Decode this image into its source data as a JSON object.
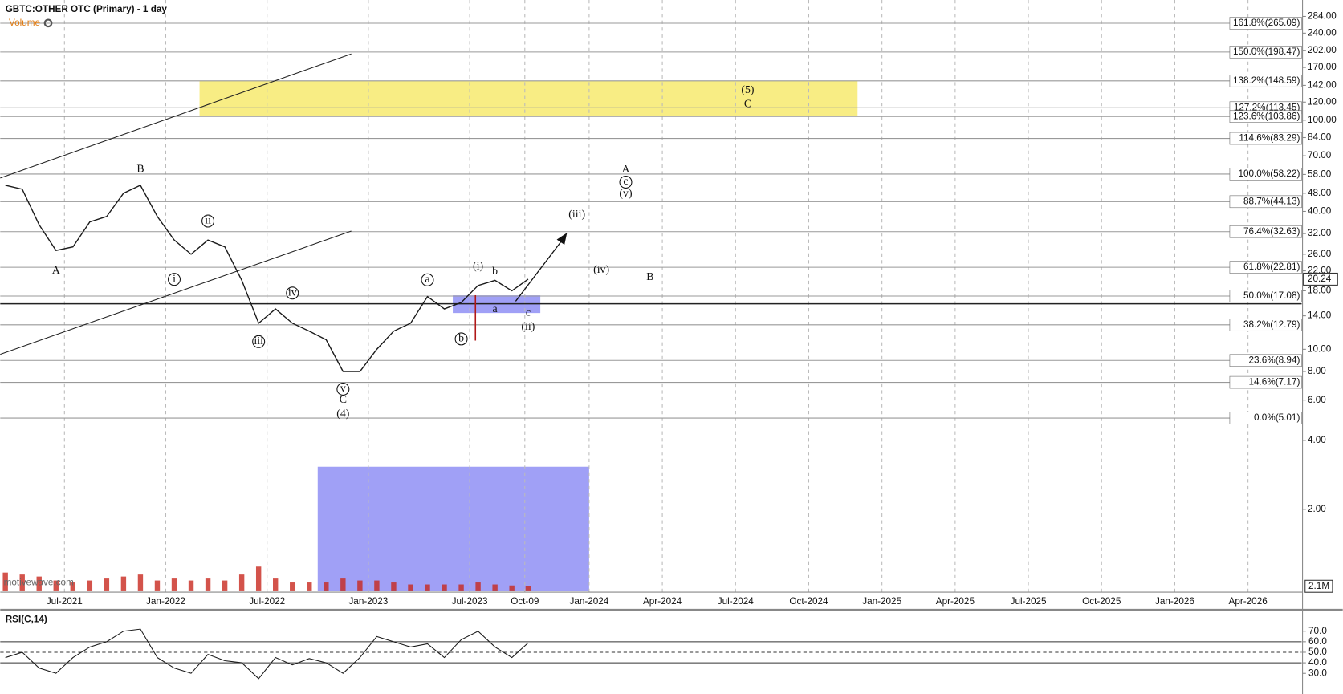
{
  "header": {
    "title": "GBTC:OTHER OTC (Primary) - 1 day",
    "watermark": "motivewave.com"
  },
  "chart_data": [
    {
      "type": "line",
      "color": "#1a1a1a",
      "log_scale": true,
      "grid": true,
      "x": [
        "2021-03",
        "2021-04",
        "2021-05",
        "2021-06",
        "2021-07",
        "2021-08",
        "2021-09",
        "2021-10",
        "2021-11",
        "2021-12",
        "2022-01",
        "2022-02",
        "2022-03",
        "2022-04",
        "2022-05",
        "2022-06",
        "2022-07",
        "2022-08",
        "2022-09",
        "2022-10",
        "2022-11",
        "2022-12",
        "2023-01",
        "2023-02",
        "2023-03",
        "2023-04",
        "2023-05",
        "2023-06",
        "2023-07",
        "2023-08",
        "2023-09",
        "2023-10"
      ],
      "values": [
        52,
        50,
        35,
        27,
        28,
        36,
        38,
        48,
        52,
        38,
        30,
        26,
        30,
        28,
        20,
        13,
        15,
        13,
        12,
        11,
        8,
        8,
        10,
        12,
        13,
        17,
        15,
        16,
        19,
        20,
        18,
        20.24
      ],
      "ylim": [
        0.87,
        335
      ],
      "yticks": [
        {
          "value": 284,
          "label": "284.00"
        },
        {
          "value": 240,
          "label": "240.00"
        },
        {
          "value": 202,
          "label": "202.00"
        },
        {
          "value": 170,
          "label": "170.00"
        },
        {
          "value": 142,
          "label": "142.00"
        },
        {
          "value": 120,
          "label": "120.00"
        },
        {
          "value": 100,
          "label": "100.00"
        },
        {
          "value": 84,
          "label": "84.00"
        },
        {
          "value": 70,
          "label": "70.00"
        },
        {
          "value": 58,
          "label": "58.00"
        },
        {
          "value": 48,
          "label": "48.00"
        },
        {
          "value": 40,
          "label": "40.00"
        },
        {
          "value": 32,
          "label": "32.00"
        },
        {
          "value": 26,
          "label": "26.00"
        },
        {
          "value": 22,
          "label": "22.00"
        },
        {
          "value": 18,
          "label": "18.00"
        },
        {
          "value": 14,
          "label": "14.00"
        },
        {
          "value": 10,
          "label": "10.00"
        },
        {
          "value": 8,
          "label": "8.00"
        },
        {
          "value": 6,
          "label": "6.00"
        },
        {
          "value": 4,
          "label": "4.00"
        },
        {
          "value": 2,
          "label": "2.00"
        }
      ],
      "xticks": [
        {
          "value": "2021-07",
          "label": "Jul-2021"
        },
        {
          "value": "2022-01",
          "label": "Jan-2022"
        },
        {
          "value": "2022-07",
          "label": "Jul-2022"
        },
        {
          "value": "2023-01",
          "label": "Jan-2023"
        },
        {
          "value": "2023-07",
          "label": "Jul-2023"
        },
        {
          "value": "2023-10-09",
          "label": "Oct-09"
        },
        {
          "value": "2024-01",
          "label": "Jan-2024"
        },
        {
          "value": "2024-04",
          "label": "Apr-2024"
        },
        {
          "value": "2024-07",
          "label": "Jul-2024"
        },
        {
          "value": "2024-10",
          "label": "Oct-2024"
        },
        {
          "value": "2025-01",
          "label": "Jan-2025"
        },
        {
          "value": "2025-04",
          "label": "Apr-2025"
        },
        {
          "value": "2025-07",
          "label": "Jul-2025"
        },
        {
          "value": "2025-10",
          "label": "Oct-2025"
        },
        {
          "value": "2026-01",
          "label": "Jan-2026"
        },
        {
          "value": "2026-04",
          "label": "Apr-2026"
        }
      ],
      "fib_levels": [
        {
          "label": "161.8%(265.09)",
          "value": 265.09
        },
        {
          "label": "150.0%(198.47)",
          "value": 198.47
        },
        {
          "label": "138.2%(148.59)",
          "value": 148.59
        },
        {
          "label": "127.2%(113.45)",
          "value": 113.45
        },
        {
          "label": "123.6%(103.86)",
          "value": 103.86
        },
        {
          "label": "114.6%(83.29)",
          "value": 83.29
        },
        {
          "label": "100.0%(58.22)",
          "value": 58.22
        },
        {
          "label": "88.7%(44.13)",
          "value": 44.13
        },
        {
          "label": "76.4%(32.63)",
          "value": 32.63
        },
        {
          "label": "61.8%(22.81)",
          "value": 22.81
        },
        {
          "label": "50.0%(17.08)",
          "value": 17.08
        },
        {
          "label": "38.2%(12.79)",
          "value": 12.79
        },
        {
          "label": "23.6%(8.94)",
          "value": 8.94
        },
        {
          "label": "14.6%(7.17)",
          "value": 7.17
        },
        {
          "label": "0.0%(5.01)",
          "value": 5.01
        }
      ],
      "zones": [
        {
          "x": [
            "2022-03",
            "2024-11"
          ],
          "y": [
            103.86,
            148.59
          ],
          "color": "#f7ea6e"
        },
        {
          "x": [
            "2023-06",
            "2023-10"
          ],
          "y": [
            14.4,
            17.2
          ],
          "color": "#8f8ff5"
        },
        {
          "x": [
            "2022-10",
            "2023-12"
          ],
          "y": [
            0.88,
            3.07
          ],
          "color": "#8f8ff5"
        }
      ],
      "annotations": [
        {
          "text": "A",
          "x": "2021-06",
          "y": 22,
          "style": "plain"
        },
        {
          "text": "B",
          "x": "2021-11",
          "y": 61,
          "style": "plain"
        },
        {
          "text": "i",
          "x": "2022-01",
          "y": 20.2,
          "style": "circled"
        },
        {
          "text": "ii",
          "x": "2022-03",
          "y": 36.3,
          "style": "circled"
        },
        {
          "text": "iii",
          "x": "2022-06",
          "y": 10.8,
          "style": "circled"
        },
        {
          "text": "iv",
          "x": "2022-08",
          "y": 17.6,
          "style": "circled"
        },
        {
          "text": "v",
          "x": "2022-11",
          "y": 6.7,
          "style": "circled"
        },
        {
          "text": "C",
          "x": "2022-11",
          "y": 6,
          "style": "plain"
        },
        {
          "text": "(4)",
          "x": "2022-11",
          "y": 5.2,
          "style": "plain"
        },
        {
          "text": "a",
          "x": "2023-04",
          "y": 20.1,
          "style": "circled"
        },
        {
          "text": "b",
          "x": "2023-06",
          "y": 11.1,
          "style": "circled"
        },
        {
          "text": "(i)",
          "x": "2023-07",
          "y": 23,
          "style": "plain"
        },
        {
          "text": "b",
          "x": "2023-08",
          "y": 21.8,
          "style": "plain"
        },
        {
          "text": "a",
          "x": "2023-08",
          "y": 14.9,
          "style": "plain"
        },
        {
          "text": "c",
          "x": "2023-10",
          "y": 14.4,
          "style": "plain"
        },
        {
          "text": "(ii)",
          "x": "2023-10",
          "y": 12.5,
          "style": "plain"
        },
        {
          "text": "(iii)",
          "x": "2023-12",
          "y": 38.6,
          "style": "plain"
        },
        {
          "text": "(iv)",
          "x": "2024-01",
          "y": 22.1,
          "style": "plain"
        },
        {
          "text": "B",
          "x": "2024-03",
          "y": 20.6,
          "style": "plain"
        },
        {
          "text": "A",
          "x": "2024-02",
          "y": 60.8,
          "style": "plain"
        },
        {
          "text": "c",
          "x": "2024-02",
          "y": 53.7,
          "style": "circled"
        },
        {
          "text": "(v)",
          "x": "2024-02",
          "y": 47.6,
          "style": "plain"
        },
        {
          "text": "(5)",
          "x": "2024-07",
          "y": 135,
          "style": "plain"
        },
        {
          "text": "C",
          "x": "2024-07",
          "y": 117,
          "style": "plain"
        }
      ]
    },
    {
      "type": "bar",
      "title": "Volume",
      "color": "#c8281e",
      "x": [
        "2021-03",
        "2021-04",
        "2021-05",
        "2021-06",
        "2021-07",
        "2021-08",
        "2021-09",
        "2021-10",
        "2021-11",
        "2021-12",
        "2022-01",
        "2022-02",
        "2022-03",
        "2022-04",
        "2022-05",
        "2022-06",
        "2022-07",
        "2022-08",
        "2022-09",
        "2022-10",
        "2022-11",
        "2022-12",
        "2023-01",
        "2023-02",
        "2023-03",
        "2023-04",
        "2023-05",
        "2023-06",
        "2023-07",
        "2023-08",
        "2023-09",
        "2023-10"
      ],
      "values": [
        9000000,
        8000000,
        7000000,
        5000000,
        4000000,
        5000000,
        6000000,
        7000000,
        8000000,
        5000000,
        6000000,
        5000000,
        6000000,
        5000000,
        8000000,
        12000000,
        6000000,
        4000000,
        4000000,
        4000000,
        6000000,
        5000000,
        5000000,
        4000000,
        3000000,
        3000000,
        3000000,
        3000000,
        4000000,
        3000000,
        2500000,
        2100000
      ],
      "value_labels": [
        null,
        null,
        null,
        null,
        null,
        null,
        null,
        null,
        null,
        null,
        null,
        null,
        null,
        null,
        null,
        null,
        null,
        null,
        null,
        null,
        null,
        null,
        null,
        null,
        null,
        null,
        null,
        null,
        null,
        null,
        null,
        "2.1M"
      ],
      "ylim": [
        0,
        25000000
      ]
    },
    {
      "type": "line",
      "title": "RSI(C,14)",
      "color": "#1a1a1a",
      "x": [
        "2021-03",
        "2021-04",
        "2021-05",
        "2021-06",
        "2021-07",
        "2021-08",
        "2021-09",
        "2021-10",
        "2021-11",
        "2021-12",
        "2022-01",
        "2022-02",
        "2022-03",
        "2022-04",
        "2022-05",
        "2022-06",
        "2022-07",
        "2022-08",
        "2022-09",
        "2022-10",
        "2022-11",
        "2022-12",
        "2023-01",
        "2023-02",
        "2023-03",
        "2023-04",
        "2023-05",
        "2023-06",
        "2023-07",
        "2023-08",
        "2023-09",
        "2023-10"
      ],
      "values": [
        45,
        50,
        35,
        30,
        45,
        55,
        60,
        70,
        72,
        45,
        35,
        30,
        48,
        42,
        40,
        25,
        45,
        38,
        44,
        40,
        30,
        45,
        65,
        60,
        55,
        58,
        45,
        62,
        70,
        55,
        45,
        59
      ],
      "ylim": [
        12,
        90
      ],
      "yticks": [
        {
          "value": 70,
          "label": "70.0"
        },
        {
          "value": 60,
          "label": "60.0"
        },
        {
          "value": 50,
          "label": "50.0"
        },
        {
          "value": 40,
          "label": "40.0"
        },
        {
          "value": 30,
          "label": "30.0"
        }
      ],
      "levels": [
        {
          "value": 60,
          "style": "solid"
        },
        {
          "value": 50,
          "style": "dashed"
        },
        {
          "value": 40,
          "style": "solid"
        }
      ]
    }
  ]
}
